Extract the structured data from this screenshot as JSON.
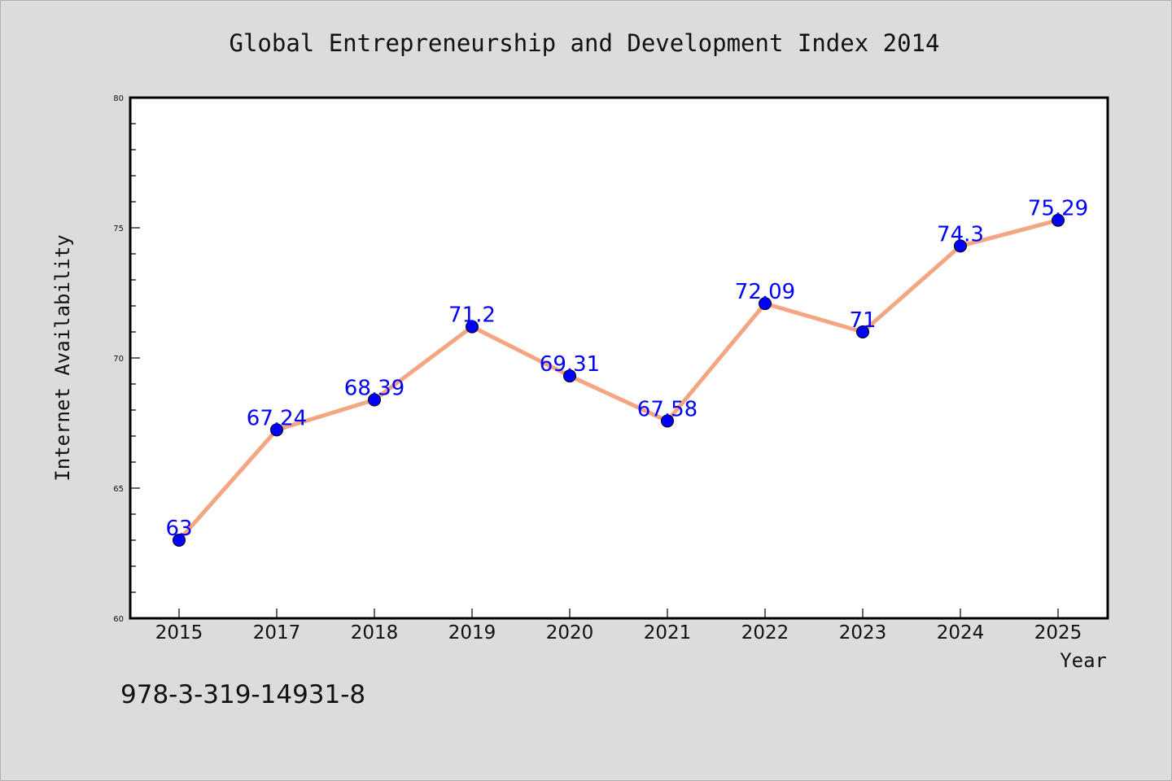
{
  "chart_data": {
    "type": "line",
    "title": "Global Entrepreneurship and Development Index 2014",
    "xlabel": "Year",
    "ylabel": "Internet Availability",
    "categories": [
      "2015",
      "2017",
      "2018",
      "2019",
      "2020",
      "2021",
      "2022",
      "2023",
      "2024",
      "2025"
    ],
    "series": [
      {
        "values": [
          63,
          67.24,
          68.39,
          71.2,
          69.31,
          67.58,
          72.09,
          71,
          74.3,
          75.29
        ],
        "labels": [
          "63",
          "67.24",
          "68.39",
          "71.2",
          "69.31",
          "67.58",
          "72.09",
          "71",
          "74.3",
          "75.29"
        ]
      }
    ],
    "ylim": [
      60,
      80
    ],
    "yticks": [
      "60",
      "65",
      "70",
      "75",
      "80"
    ],
    "grid": false,
    "legend": "none",
    "colors": {
      "line": "#f4a582",
      "marker": "#0000ff",
      "label": "#0000ff",
      "plot_bg": "#ffffff",
      "page_bg": "#dcdcdc"
    }
  },
  "footer_text": "978-3-319-14931-8"
}
